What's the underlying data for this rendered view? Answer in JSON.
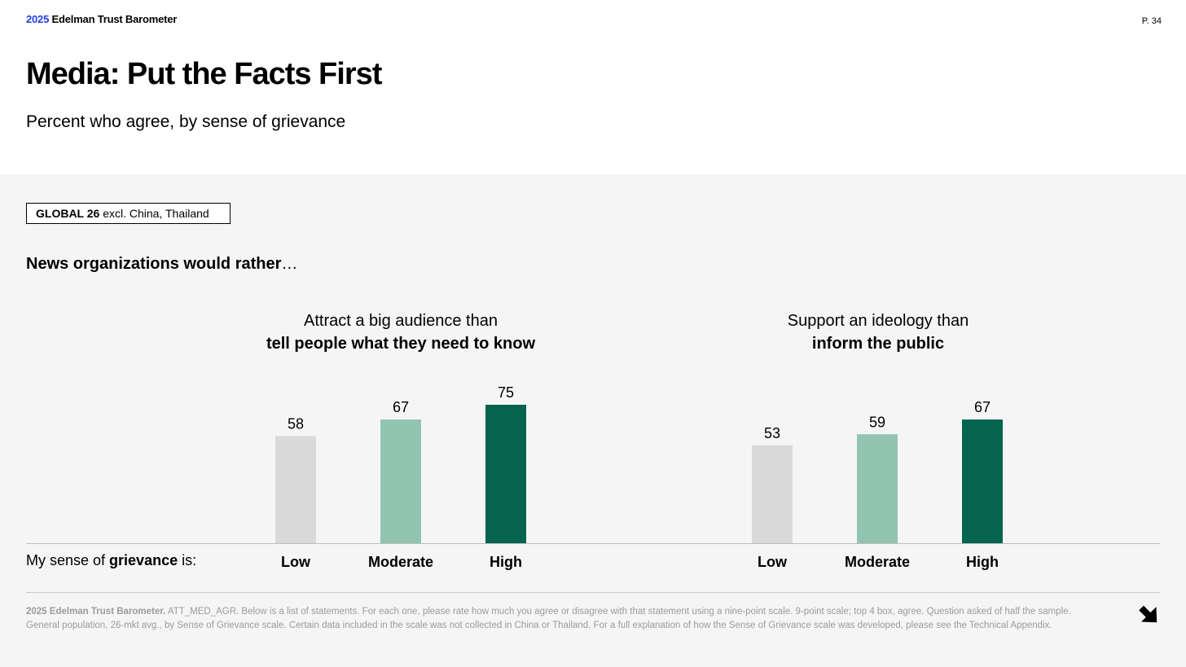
{
  "header": {
    "brand_year": "2025",
    "brand_name": " Edelman Trust Barometer",
    "page_number": "P. 34"
  },
  "title": "Media: Put the Facts First",
  "subtitle": "Percent who agree, by sense of grievance",
  "scope": {
    "bold": "GLOBAL 26",
    "rest": " excl. China, Thailand"
  },
  "lead": {
    "bold": "News organizations would rather",
    "rest": "…"
  },
  "row_label": {
    "pre": "My sense of ",
    "bold": "grievance",
    "post": " is:"
  },
  "colors": {
    "low": "#d9d9d9",
    "moderate": "#92c4b2",
    "high": "#04644d",
    "axis": "#bdbdbd"
  },
  "chart_data": [
    {
      "type": "bar",
      "title_line1": "Attract a big audience than",
      "title_line2": "tell people what they need to know",
      "categories": [
        "Low",
        "Moderate",
        "High"
      ],
      "values": [
        58,
        67,
        75
      ]
    },
    {
      "type": "bar",
      "title_line1": "Support an ideology than",
      "title_line2": "inform the public",
      "categories": [
        "Low",
        "Moderate",
        "High"
      ],
      "values": [
        53,
        59,
        67
      ]
    }
  ],
  "footnote": {
    "bold": "2025 Edelman Trust Barometer.",
    "text": " ATT_MED_AGR. Below is a list of statements. For each one, please rate how much you agree or disagree with that statement using a nine-point scale. 9-point scale; top 4 box, agree. Question asked of half the sample. General population, 26-mkt avg., by Sense of Grievance scale. Certain data included in the scale was not collected in China or Thailand. For a full explanation of how the Sense of Grievance scale was developed, please see the Technical Appendix."
  },
  "next_icon": "arrow-down-right-icon"
}
